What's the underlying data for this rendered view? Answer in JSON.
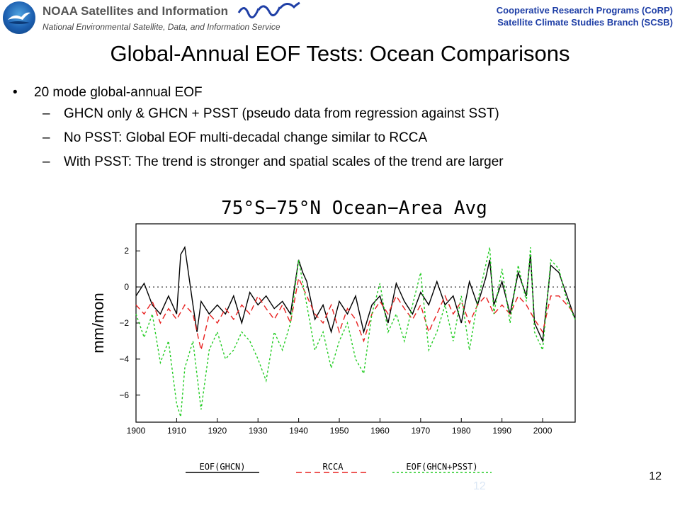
{
  "header": {
    "org_name": "NOAA Satellites and Information",
    "org_sub": "National Environmental Satellite, Data, and Information Service",
    "right_line1": "Cooperative Research Programs (CoRP)",
    "right_line2": "Satellite Climate Studies Branch (SCSB)"
  },
  "slide": {
    "title": "Global-Annual EOF Tests: Ocean Comparisons",
    "bullet_main": "20 mode global-annual EOF",
    "bullet_dot": "•",
    "sub_dash": "–",
    "sub_bullets": [
      "GHCN only & GHCN + PSST (pseudo data from regression against SST)",
      "No PSST: Global EOF multi-decadal change similar to RCCA",
      "With PSST: The trend is stronger and spatial scales of the trend are larger"
    ],
    "page_number": "12",
    "ghost_number": "12"
  },
  "colors": {
    "header_blue": "#1f3fa6",
    "ghcn": "#000000",
    "rcca": "#e8201f",
    "psst": "#22cc22"
  },
  "chart_data": {
    "type": "line",
    "title": "75°S−75°N Ocean−Area Avg",
    "xlabel": "",
    "ylabel": "mm/mon",
    "xlim": [
      1900,
      2008
    ],
    "ylim": [
      -7.5,
      3.5
    ],
    "x_ticks": [
      1900,
      1910,
      1920,
      1930,
      1940,
      1950,
      1960,
      1970,
      1980,
      1990,
      2000
    ],
    "y_ticks": [
      2,
      0,
      -2,
      -4,
      -6
    ],
    "zero_line": true,
    "grid": false,
    "legend_position": "bottom",
    "series": [
      {
        "name": "EOF(GHCN)",
        "color": "#000000",
        "dash": "solid",
        "x": [
          1900,
          1902,
          1904,
          1906,
          1908,
          1910,
          1911,
          1912,
          1914,
          1915,
          1916,
          1918,
          1920,
          1922,
          1924,
          1926,
          1928,
          1930,
          1932,
          1934,
          1936,
          1938,
          1940,
          1941,
          1942,
          1944,
          1946,
          1948,
          1950,
          1952,
          1954,
          1956,
          1958,
          1960,
          1962,
          1964,
          1966,
          1968,
          1970,
          1972,
          1974,
          1976,
          1978,
          1980,
          1982,
          1984,
          1986,
          1987,
          1988,
          1990,
          1992,
          1994,
          1996,
          1997,
          1998,
          2000,
          2002,
          2004,
          2006,
          2008
        ],
        "y": [
          -0.5,
          0.2,
          -1.0,
          -1.5,
          -0.5,
          -1.5,
          1.8,
          2.2,
          -1.0,
          -2.5,
          -0.8,
          -1.5,
          -1.0,
          -1.5,
          -0.5,
          -2.0,
          -0.3,
          -1.0,
          -0.5,
          -1.2,
          -0.8,
          -1.5,
          1.5,
          0.8,
          0.3,
          -1.8,
          -1.0,
          -2.5,
          -0.8,
          -1.5,
          -0.5,
          -2.5,
          -1.0,
          -0.5,
          -2.0,
          0.2,
          -0.8,
          -1.5,
          -0.3,
          -1.0,
          0.3,
          -1.0,
          -0.5,
          -2.0,
          0.3,
          -1.0,
          0.5,
          1.5,
          -1.0,
          0.3,
          -1.5,
          0.8,
          -0.5,
          1.8,
          -2.0,
          -3.0,
          1.2,
          0.8,
          -0.5,
          -1.8
        ]
      },
      {
        "name": "RCCA",
        "color": "#e8201f",
        "dash": "8 5",
        "x": [
          1900,
          1902,
          1904,
          1906,
          1908,
          1910,
          1912,
          1914,
          1916,
          1918,
          1920,
          1922,
          1924,
          1926,
          1928,
          1930,
          1932,
          1934,
          1936,
          1938,
          1940,
          1942,
          1944,
          1946,
          1948,
          1950,
          1952,
          1954,
          1956,
          1958,
          1960,
          1962,
          1964,
          1966,
          1968,
          1970,
          1972,
          1974,
          1976,
          1978,
          1980,
          1982,
          1984,
          1986,
          1988,
          1990,
          1992,
          1994,
          1996,
          1998,
          2000,
          2002,
          2004,
          2006,
          2008
        ],
        "y": [
          -1.0,
          -1.5,
          -0.8,
          -2.0,
          -1.2,
          -1.8,
          -1.0,
          -1.5,
          -3.5,
          -1.5,
          -2.0,
          -1.2,
          -1.8,
          -1.0,
          -1.5,
          -0.5,
          -1.2,
          -1.8,
          -1.0,
          -2.0,
          0.5,
          -0.5,
          -1.5,
          -2.0,
          -1.0,
          -2.5,
          -1.2,
          -1.8,
          -3.0,
          -1.5,
          -0.8,
          -1.5,
          -0.5,
          -1.2,
          -1.8,
          -1.0,
          -2.5,
          -1.5,
          -0.5,
          -1.5,
          -0.8,
          -2.0,
          -1.0,
          -0.5,
          -1.5,
          -1.0,
          -1.5,
          -0.5,
          -1.0,
          -1.8,
          -2.5,
          -0.5,
          -0.5,
          -1.0,
          -1.5
        ]
      },
      {
        "name": "EOF(GHCN+PSST)",
        "color": "#22cc22",
        "dash": "3 3",
        "x": [
          1900,
          1902,
          1904,
          1906,
          1908,
          1910,
          1911,
          1912,
          1914,
          1916,
          1918,
          1920,
          1922,
          1924,
          1926,
          1928,
          1930,
          1932,
          1934,
          1936,
          1938,
          1940,
          1942,
          1944,
          1946,
          1948,
          1950,
          1952,
          1954,
          1956,
          1958,
          1960,
          1962,
          1964,
          1966,
          1968,
          1970,
          1972,
          1974,
          1976,
          1978,
          1980,
          1982,
          1984,
          1986,
          1987,
          1988,
          1990,
          1992,
          1994,
          1996,
          1997,
          1998,
          2000,
          2002,
          2004,
          2006,
          2008
        ],
        "y": [
          -1.5,
          -2.8,
          -1.5,
          -4.2,
          -3.0,
          -6.5,
          -7.2,
          -4.5,
          -3.0,
          -6.8,
          -3.5,
          -2.5,
          -4.0,
          -3.5,
          -2.5,
          -3.0,
          -4.0,
          -5.2,
          -2.5,
          -3.5,
          -2.0,
          1.5,
          -1.0,
          -3.5,
          -2.5,
          -4.5,
          -3.0,
          -2.0,
          -4.0,
          -4.8,
          -1.5,
          0.2,
          -2.5,
          -1.5,
          -3.0,
          -1.0,
          0.8,
          -3.5,
          -2.5,
          -1.0,
          -3.0,
          -0.5,
          -3.5,
          -0.8,
          1.2,
          2.2,
          -1.5,
          1.0,
          -2.0,
          1.2,
          -0.8,
          2.2,
          -2.5,
          -3.5,
          1.5,
          1.0,
          -0.8,
          -1.8
        ]
      }
    ]
  }
}
